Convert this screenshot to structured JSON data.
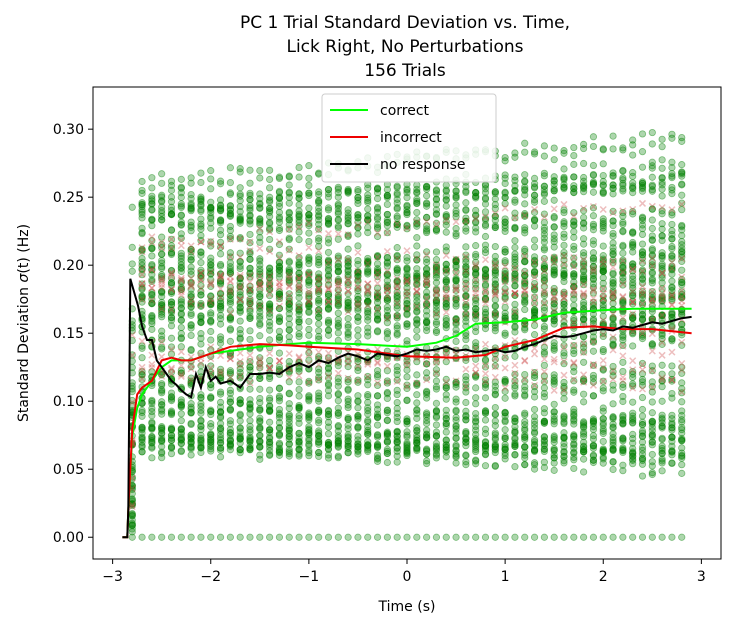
{
  "chart_data": {
    "type": "line",
    "title_lines": [
      "PC 1 Trial Standard Deviation vs. Time,",
      "Lick Right, No Perturbations",
      "156 Trials"
    ],
    "xlabel": "Time (s)",
    "ylabel_prefix": "Standard Deviation ",
    "ylabel_sigma": "σ",
    "ylabel_suffix": "(t) (Hz)",
    "xlim": [
      -3.2,
      3.2
    ],
    "ylim": [
      -0.016,
      0.331
    ],
    "xticks": [
      -3,
      -2,
      -1,
      0,
      1,
      2,
      3
    ],
    "xtick_labels": [
      "−3",
      "−2",
      "−1",
      "0",
      "1",
      "2",
      "3"
    ],
    "yticks": [
      0.0,
      0.05,
      0.1,
      0.15,
      0.2,
      0.25,
      0.3
    ],
    "ytick_labels": [
      "0.00",
      "0.05",
      "0.10",
      "0.15",
      "0.20",
      "0.25",
      "0.30"
    ],
    "legend_position": "top-center",
    "series": [
      {
        "name": "correct",
        "color": "#00ff00",
        "x": [
          -2.9,
          -2.85,
          -2.84,
          -2.8,
          -2.75,
          -2.7,
          -2.6,
          -2.5,
          -2.4,
          -2.2,
          -2.0,
          -1.8,
          -1.5,
          -1.2,
          -1.0,
          -0.5,
          0.0,
          0.3,
          0.5,
          0.7,
          1.0,
          1.3,
          1.6,
          2.0,
          2.3,
          2.6,
          2.9
        ],
        "values": [
          0.0,
          0.0,
          0.02,
          0.075,
          0.095,
          0.105,
          0.115,
          0.125,
          0.13,
          0.13,
          0.135,
          0.137,
          0.14,
          0.142,
          0.143,
          0.142,
          0.14,
          0.143,
          0.148,
          0.157,
          0.158,
          0.16,
          0.165,
          0.167,
          0.168,
          0.168,
          0.168
        ]
      },
      {
        "name": "incorrect",
        "color": "#ee0000",
        "x": [
          -2.9,
          -2.85,
          -2.84,
          -2.8,
          -2.75,
          -2.7,
          -2.6,
          -2.5,
          -2.4,
          -2.3,
          -2.2,
          -2.0,
          -1.8,
          -1.5,
          -1.2,
          -1.0,
          -0.5,
          0.0,
          0.5,
          0.8,
          1.0,
          1.3,
          1.6,
          1.9,
          2.2,
          2.5,
          2.9
        ],
        "values": [
          0.0,
          0.0,
          0.02,
          0.08,
          0.105,
          0.11,
          0.115,
          0.13,
          0.132,
          0.13,
          0.13,
          0.135,
          0.14,
          0.142,
          0.141,
          0.14,
          0.138,
          0.133,
          0.132,
          0.134,
          0.14,
          0.145,
          0.154,
          0.155,
          0.153,
          0.153,
          0.15
        ]
      },
      {
        "name": "no response",
        "color": "#000000",
        "x": [
          -2.9,
          -2.85,
          -2.84,
          -2.82,
          -2.78,
          -2.74,
          -2.7,
          -2.65,
          -2.6,
          -2.55,
          -2.5,
          -2.45,
          -2.4,
          -2.35,
          -2.3,
          -2.25,
          -2.2,
          -2.15,
          -2.1,
          -2.05,
          -2.0,
          -1.95,
          -1.9,
          -1.8,
          -1.7,
          -1.6,
          -1.5,
          -1.4,
          -1.3,
          -1.2,
          -1.1,
          -1.0,
          -0.9,
          -0.8,
          -0.7,
          -0.6,
          -0.5,
          -0.4,
          -0.3,
          -0.2,
          -0.1,
          0.0,
          0.1,
          0.2,
          0.3,
          0.4,
          0.5,
          0.6,
          0.7,
          0.8,
          0.9,
          1.0,
          1.1,
          1.2,
          1.3,
          1.4,
          1.5,
          1.6,
          1.7,
          1.8,
          1.9,
          2.0,
          2.1,
          2.2,
          2.3,
          2.4,
          2.5,
          2.6,
          2.7,
          2.8,
          2.9
        ],
        "values": [
          0.0,
          0.0,
          0.02,
          0.19,
          0.18,
          0.17,
          0.155,
          0.145,
          0.145,
          0.13,
          0.125,
          0.12,
          0.115,
          0.112,
          0.108,
          0.105,
          0.103,
          0.12,
          0.11,
          0.125,
          0.115,
          0.118,
          0.113,
          0.115,
          0.11,
          0.12,
          0.12,
          0.121,
          0.12,
          0.125,
          0.128,
          0.125,
          0.13,
          0.128,
          0.132,
          0.135,
          0.133,
          0.13,
          0.135,
          0.134,
          0.133,
          0.135,
          0.138,
          0.137,
          0.138,
          0.14,
          0.137,
          0.138,
          0.136,
          0.137,
          0.138,
          0.136,
          0.137,
          0.14,
          0.142,
          0.145,
          0.148,
          0.147,
          0.148,
          0.15,
          0.152,
          0.153,
          0.152,
          0.155,
          0.154,
          0.156,
          0.158,
          0.157,
          0.159,
          0.161,
          0.162
        ]
      }
    ],
    "scatter_correct_color": "#008000",
    "scatter_incorrect_color": "#cc4444"
  }
}
